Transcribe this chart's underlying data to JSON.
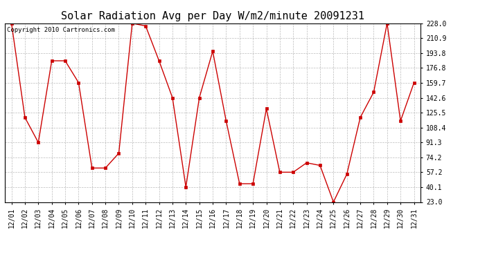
{
  "title": "Solar Radiation Avg per Day W/m2/minute 20091231",
  "copyright": "Copyright 2010 Cartronics.com",
  "dates": [
    "12/01",
    "12/02",
    "12/03",
    "12/04",
    "12/05",
    "12/06",
    "12/07",
    "12/08",
    "12/09",
    "12/10",
    "12/11",
    "12/12",
    "12/13",
    "12/14",
    "12/15",
    "12/16",
    "12/17",
    "12/18",
    "12/19",
    "12/20",
    "12/21",
    "12/22",
    "12/23",
    "12/24",
    "12/25",
    "12/26",
    "12/27",
    "12/28",
    "12/29",
    "12/30",
    "12/31"
  ],
  "values": [
    228.0,
    120.0,
    91.3,
    185.0,
    185.0,
    160.0,
    62.0,
    62.0,
    79.0,
    228.0,
    225.0,
    185.0,
    142.6,
    40.1,
    142.6,
    196.0,
    116.0,
    44.0,
    44.0,
    130.0,
    57.2,
    57.2,
    68.0,
    65.0,
    23.0,
    55.0,
    120.0,
    149.0,
    228.0,
    116.0,
    159.7
  ],
  "yticks": [
    23.0,
    40.1,
    57.2,
    74.2,
    91.3,
    108.4,
    125.5,
    142.6,
    159.7,
    176.8,
    193.8,
    210.9,
    228.0
  ],
  "ymin": 23.0,
  "ymax": 228.0,
  "line_color": "#cc0000",
  "marker": "s",
  "marker_size": 2.5,
  "bg_color": "#ffffff",
  "grid_color": "#aaaaaa",
  "title_fontsize": 11,
  "tick_fontsize": 7,
  "copyright_fontsize": 6.5
}
